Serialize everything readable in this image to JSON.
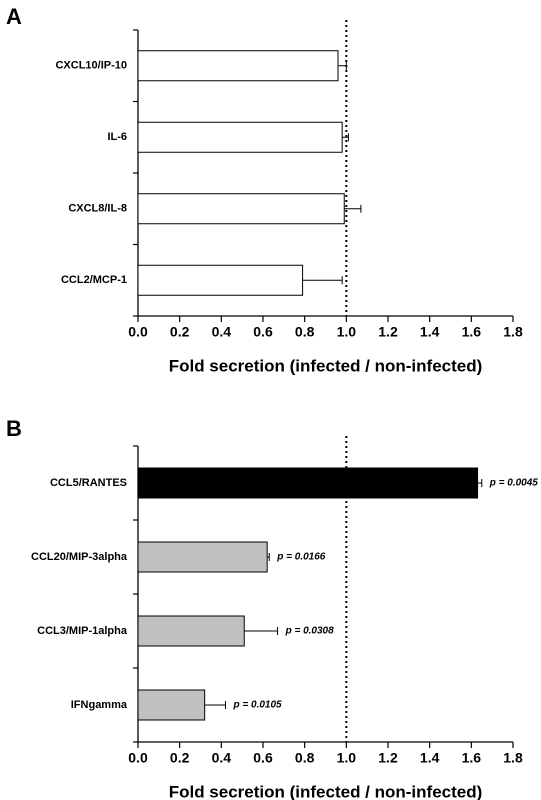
{
  "chart_data": [
    {
      "type": "bar",
      "orientation": "horizontal",
      "panel": "A",
      "xlabel": "Fold secretion (infected / non-infected)",
      "categories": [
        "CXCL10/IP-10",
        "IL-6",
        "CXCL8/IL-8",
        "CCL2/MCP-1"
      ],
      "values": [
        0.96,
        0.98,
        0.99,
        0.79
      ],
      "errors": [
        0.04,
        0.03,
        0.08,
        0.19
      ],
      "colors": [
        "#ffffff",
        "#ffffff",
        "#ffffff",
        "#ffffff"
      ],
      "xlim": [
        0,
        1.8
      ],
      "xticks": [
        {
          "value": 0,
          "label": "0.0"
        },
        0.2,
        0.4,
        0.6,
        0.8,
        {
          "value": 1,
          "label": "1.0"
        },
        1.2,
        1.4,
        1.6,
        1.8
      ],
      "reference_line": 1
    },
    {
      "type": "bar",
      "orientation": "horizontal",
      "panel": "B",
      "xlabel": "Fold secretion (infected / non-infected)",
      "categories": [
        "CCL5/RANTES",
        "CCL20/MIP-3alpha",
        "CCL3/MIP-1alpha",
        "IFNgamma"
      ],
      "values": [
        1.63,
        0.62,
        0.51,
        0.32
      ],
      "errors": [
        0.02,
        0.01,
        0.16,
        0.1
      ],
      "colors": [
        "#000000",
        "#c0c0c0",
        "#c0c0c0",
        "#c0c0c0"
      ],
      "annotations": [
        "p = 0.0045",
        "p = 0.0166",
        "p = 0.0308",
        "p = 0.0105"
      ],
      "xlim": [
        0,
        1.8
      ],
      "xticks": [
        {
          "value": 0,
          "label": "0.0"
        },
        0.2,
        0.4,
        0.6,
        0.8,
        {
          "value": 1,
          "label": "1.0"
        },
        1.2,
        1.4,
        1.6,
        1.8
      ],
      "reference_line": 1
    }
  ]
}
